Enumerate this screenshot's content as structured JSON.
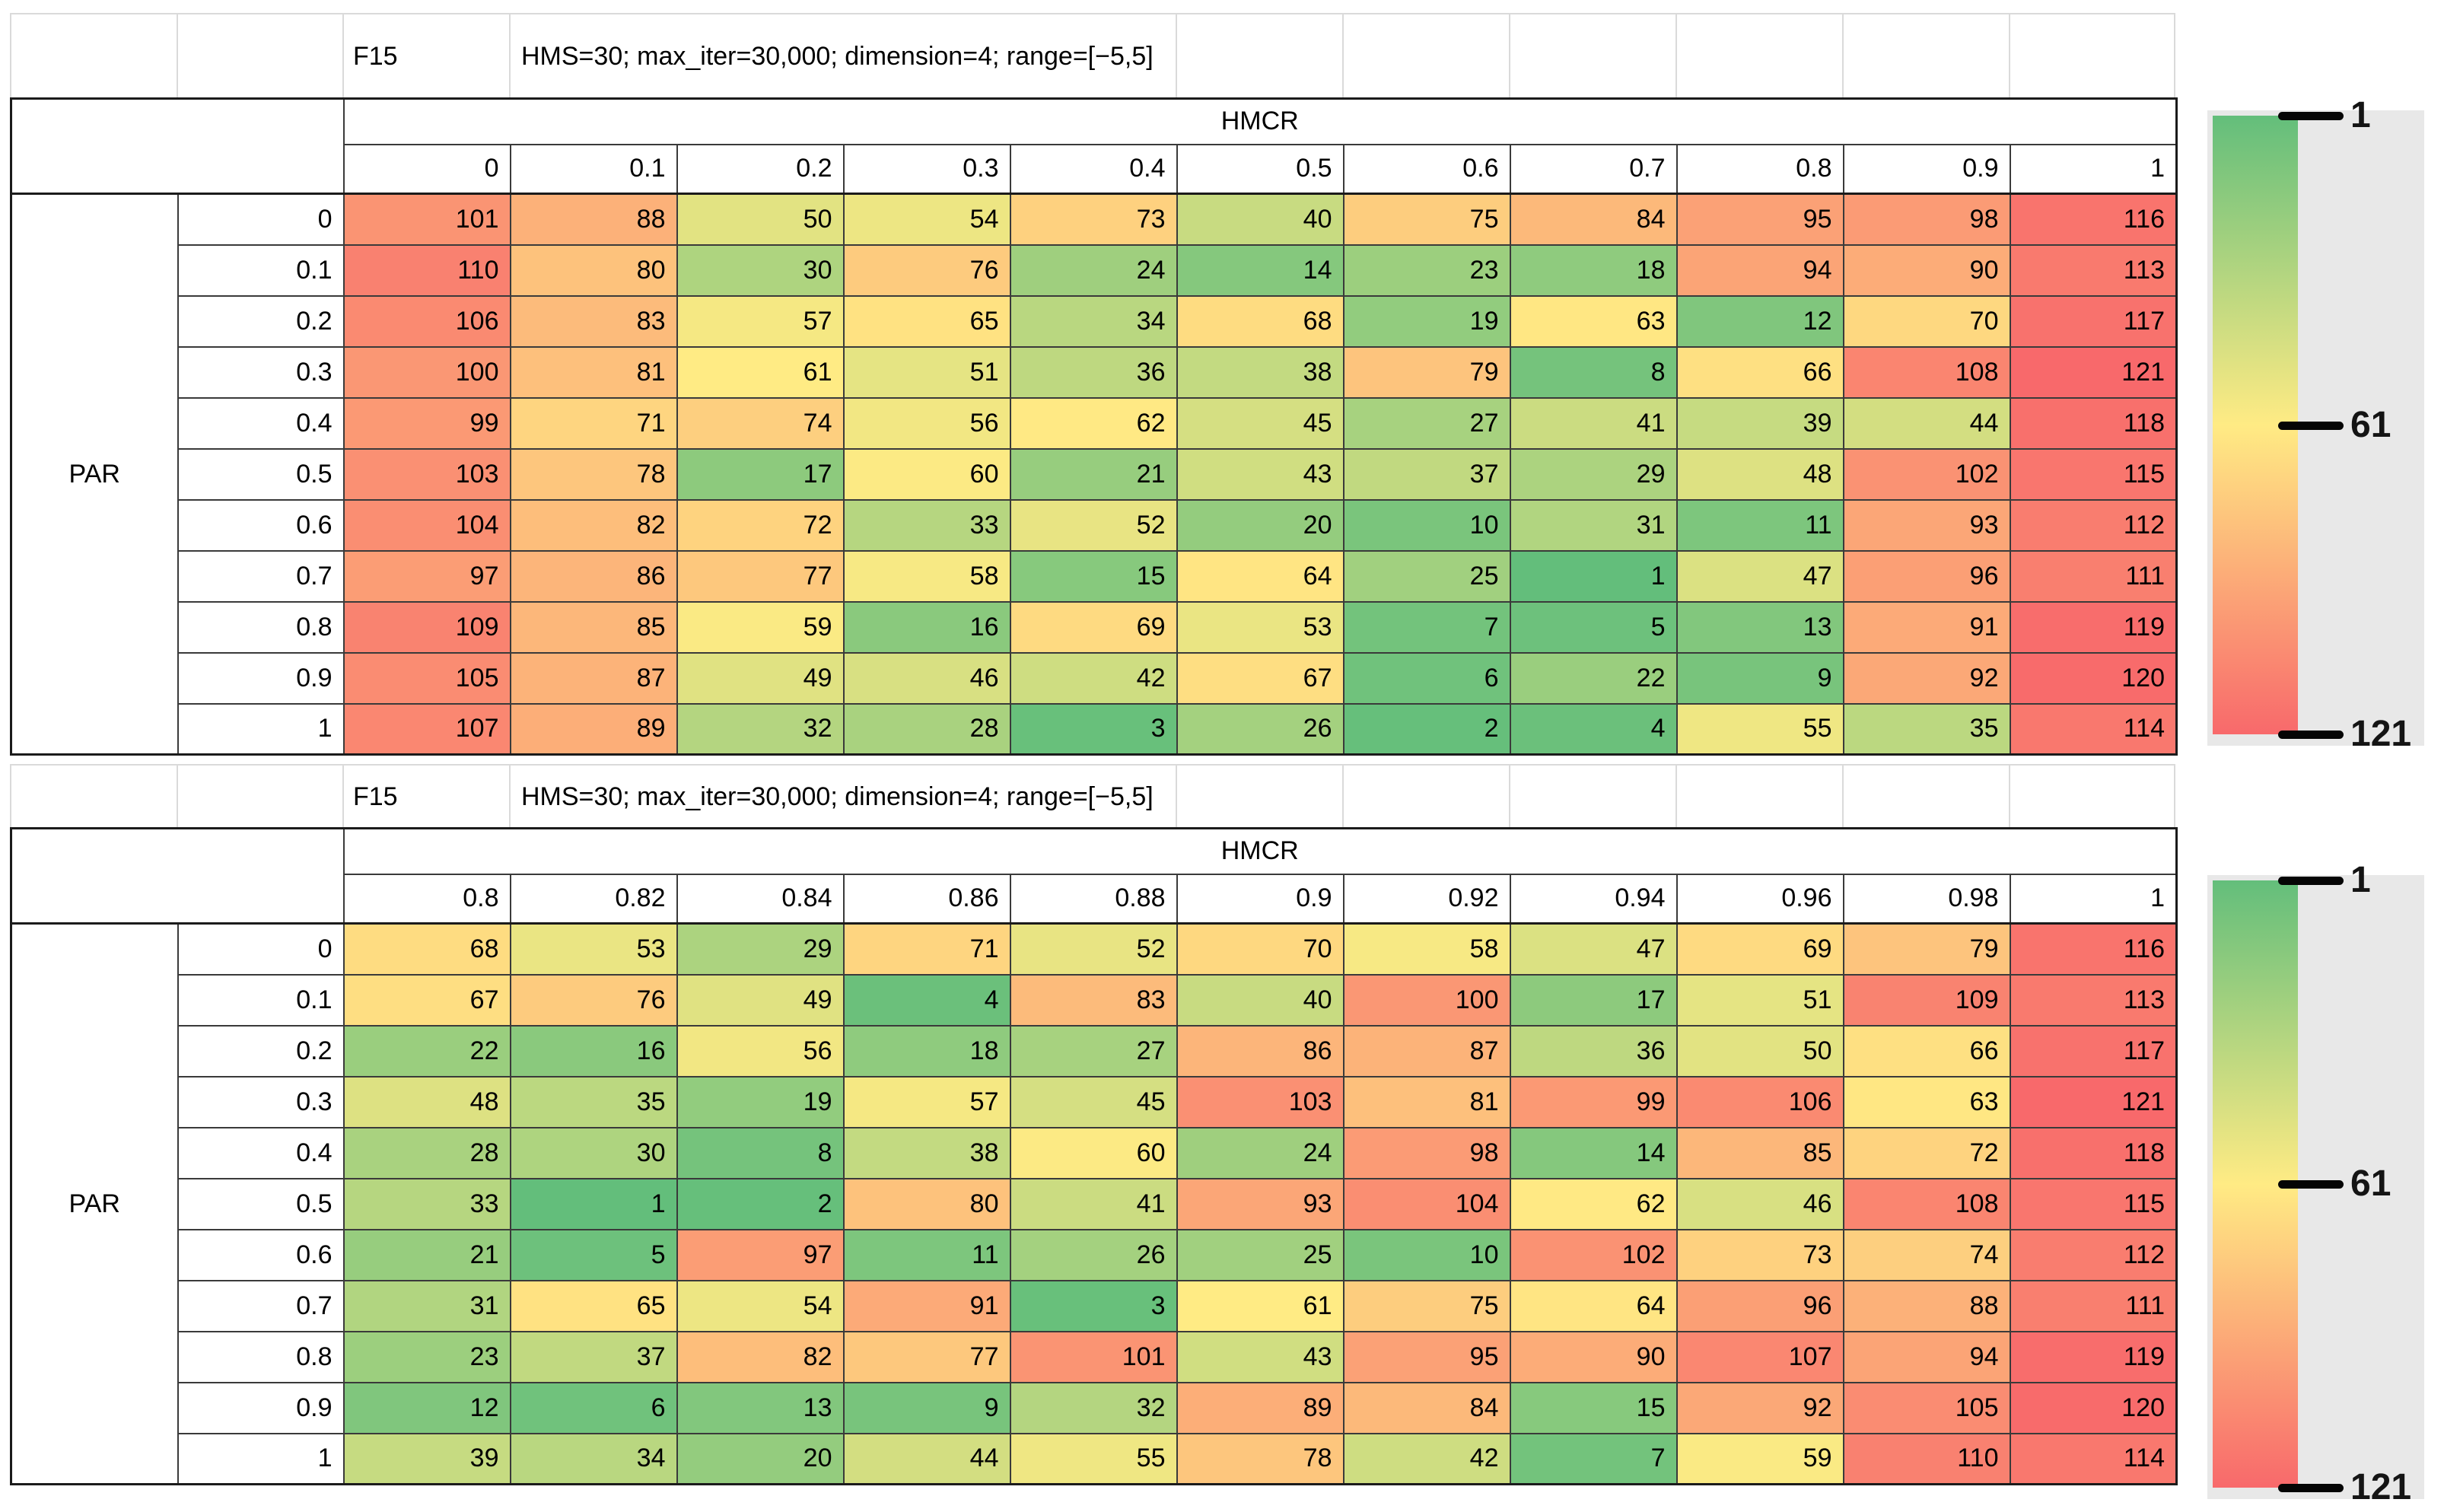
{
  "colorbar": {
    "tick_labels": [
      "1",
      "61",
      "121"
    ],
    "min": 1,
    "mid": 61,
    "max": 121,
    "min_color": "#63BE7B",
    "mid_color": "#FFEB84",
    "max_color": "#F8696B",
    "panel_bg": "#E8E8E8",
    "tick_color": "#050505"
  },
  "chart_data": [
    {
      "type": "heatmap",
      "title": "F15",
      "subtitle": "HMS=30; max_iter=30,000; dimension=4; range=[−5,5]",
      "xlabel": "HMCR",
      "ylabel": "PAR",
      "x": [
        0,
        0.1,
        0.2,
        0.3,
        0.4,
        0.5,
        0.6,
        0.7,
        0.8,
        0.9,
        1
      ],
      "y": [
        0,
        0.1,
        0.2,
        0.3,
        0.4,
        0.5,
        0.6,
        0.7,
        0.8,
        0.9,
        1
      ],
      "values": [
        [
          101,
          88,
          50,
          54,
          73,
          40,
          75,
          84,
          95,
          98,
          116
        ],
        [
          110,
          80,
          30,
          76,
          24,
          14,
          23,
          18,
          94,
          90,
          113
        ],
        [
          106,
          83,
          57,
          65,
          34,
          68,
          19,
          63,
          12,
          70,
          117
        ],
        [
          100,
          81,
          61,
          51,
          36,
          38,
          79,
          8,
          66,
          108,
          121
        ],
        [
          99,
          71,
          74,
          56,
          62,
          45,
          27,
          41,
          39,
          44,
          118
        ],
        [
          103,
          78,
          17,
          60,
          21,
          43,
          37,
          29,
          48,
          102,
          115
        ],
        [
          104,
          82,
          72,
          33,
          52,
          20,
          10,
          31,
          11,
          93,
          112
        ],
        [
          97,
          86,
          77,
          58,
          15,
          64,
          25,
          1,
          47,
          96,
          111
        ],
        [
          109,
          85,
          59,
          16,
          69,
          53,
          7,
          5,
          13,
          91,
          119
        ],
        [
          105,
          87,
          49,
          46,
          42,
          67,
          6,
          22,
          9,
          92,
          120
        ],
        [
          107,
          89,
          32,
          28,
          3,
          26,
          2,
          4,
          55,
          35,
          114
        ]
      ],
      "colorscale": {
        "min": 1,
        "mid": 61,
        "max": 121
      },
      "legend_position": "right"
    },
    {
      "type": "heatmap",
      "title": "F15",
      "subtitle": "HMS=30; max_iter=30,000; dimension=4; range=[−5,5]",
      "xlabel": "HMCR",
      "ylabel": "PAR",
      "x": [
        0.8,
        0.82,
        0.84,
        0.86,
        0.88,
        0.9,
        0.92,
        0.94,
        0.96,
        0.98,
        1
      ],
      "y": [
        0,
        0.1,
        0.2,
        0.3,
        0.4,
        0.5,
        0.6,
        0.7,
        0.8,
        0.9,
        1
      ],
      "values": [
        [
          68,
          53,
          29,
          71,
          52,
          70,
          58,
          47,
          69,
          79,
          116
        ],
        [
          67,
          76,
          49,
          4,
          83,
          40,
          100,
          17,
          51,
          109,
          113
        ],
        [
          22,
          16,
          56,
          18,
          27,
          86,
          87,
          36,
          50,
          66,
          117
        ],
        [
          48,
          35,
          19,
          57,
          45,
          103,
          81,
          99,
          106,
          63,
          121
        ],
        [
          28,
          30,
          8,
          38,
          60,
          24,
          98,
          14,
          85,
          72,
          118
        ],
        [
          33,
          1,
          2,
          80,
          41,
          93,
          104,
          62,
          46,
          108,
          115
        ],
        [
          21,
          5,
          97,
          11,
          26,
          25,
          10,
          102,
          73,
          74,
          112
        ],
        [
          31,
          65,
          54,
          91,
          3,
          61,
          75,
          64,
          96,
          88,
          111
        ],
        [
          23,
          37,
          82,
          77,
          101,
          43,
          95,
          90,
          107,
          94,
          119
        ],
        [
          12,
          6,
          13,
          9,
          32,
          89,
          84,
          15,
          92,
          105,
          120
        ],
        [
          39,
          34,
          20,
          44,
          55,
          78,
          42,
          7,
          59,
          110,
          114
        ]
      ],
      "colorscale": {
        "min": 1,
        "mid": 61,
        "max": 121
      },
      "legend_position": "right"
    }
  ]
}
